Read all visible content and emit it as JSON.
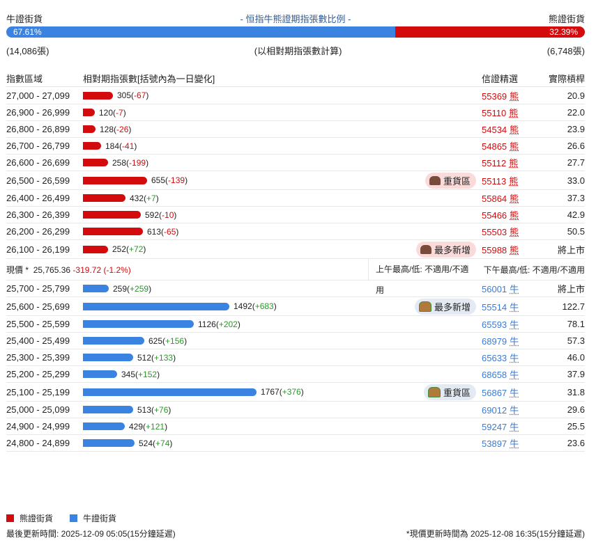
{
  "header": {
    "bull_label": "牛證街貨",
    "title": "- 恒指牛熊證期指張數比例 -",
    "bear_label": "熊證街貨",
    "bull_pct": 67.61,
    "bear_pct": 32.39,
    "bull_pct_text": "67.61%",
    "bear_pct_text": "32.39%",
    "bull_count": "(14,086張)",
    "note": "(以相對期指張數計算)",
    "bear_count": "(6,748張)"
  },
  "columns": {
    "range": "指數區域",
    "contracts": "相對期指張數[括號內為一日變化]",
    "pick": "信證精選",
    "leverage": "實際槓桿"
  },
  "colors": {
    "bear": "#d30b0d",
    "bull": "#3a83e0"
  },
  "bear_rows": [
    {
      "range": "27,000 - 27,099",
      "count": 305,
      "change": "-67",
      "code": "55369",
      "type": "熊",
      "lev": "20.9",
      "badge": ""
    },
    {
      "range": "26,900 - 26,999",
      "count": 120,
      "change": "-7",
      "code": "55110",
      "type": "熊",
      "lev": "22.0",
      "badge": ""
    },
    {
      "range": "26,800 - 26,899",
      "count": 128,
      "change": "-26",
      "code": "54534",
      "type": "熊",
      "lev": "23.9",
      "badge": ""
    },
    {
      "range": "26,700 - 26,799",
      "count": 184,
      "change": "-41",
      "code": "54865",
      "type": "熊",
      "lev": "26.6",
      "badge": ""
    },
    {
      "range": "26,600 - 26,699",
      "count": 258,
      "change": "-199",
      "code": "55112",
      "type": "熊",
      "lev": "27.7",
      "badge": ""
    },
    {
      "range": "26,500 - 26,599",
      "count": 655,
      "change": "-139",
      "code": "55113",
      "type": "熊",
      "lev": "33.0",
      "badge": "重貨區"
    },
    {
      "range": "26,400 - 26,499",
      "count": 432,
      "change": "+7",
      "code": "55864",
      "type": "熊",
      "lev": "37.3",
      "badge": ""
    },
    {
      "range": "26,300 - 26,399",
      "count": 592,
      "change": "-10",
      "code": "55466",
      "type": "熊",
      "lev": "42.9",
      "badge": ""
    },
    {
      "range": "26,200 - 26,299",
      "count": 613,
      "change": "-65",
      "code": "55503",
      "type": "熊",
      "lev": "50.5",
      "badge": ""
    },
    {
      "range": "26,100 - 26,199",
      "count": 252,
      "change": "+72",
      "code": "55988",
      "type": "熊",
      "lev": "將上市",
      "badge": "最多新增"
    }
  ],
  "price": {
    "label": "現價 *",
    "value": "25,765.36",
    "change": "-319.72 (-1.2%)",
    "am": "上午最高/低: 不適用/不適用",
    "pm": "下午最高/低: 不適用/不適用"
  },
  "bull_rows": [
    {
      "range": "25,700 - 25,799",
      "count": 259,
      "change": "+259",
      "code": "56001",
      "type": "牛",
      "lev": "將上市",
      "badge": ""
    },
    {
      "range": "25,600 - 25,699",
      "count": 1492,
      "change": "+683",
      "code": "55514",
      "type": "牛",
      "lev": "122.7",
      "badge": "最多新增"
    },
    {
      "range": "25,500 - 25,599",
      "count": 1126,
      "change": "+202",
      "code": "65593",
      "type": "牛",
      "lev": "78.1",
      "badge": ""
    },
    {
      "range": "25,400 - 25,499",
      "count": 625,
      "change": "+156",
      "code": "68979",
      "type": "牛",
      "lev": "57.3",
      "badge": ""
    },
    {
      "range": "25,300 - 25,399",
      "count": 512,
      "change": "+133",
      "code": "65633",
      "type": "牛",
      "lev": "46.0",
      "badge": ""
    },
    {
      "range": "25,200 - 25,299",
      "count": 345,
      "change": "+152",
      "code": "68658",
      "type": "牛",
      "lev": "37.9",
      "badge": ""
    },
    {
      "range": "25,100 - 25,199",
      "count": 1767,
      "change": "+376",
      "code": "56867",
      "type": "牛",
      "lev": "31.8",
      "badge": "重貨區"
    },
    {
      "range": "25,000 - 25,099",
      "count": 513,
      "change": "+76",
      "code": "69012",
      "type": "牛",
      "lev": "29.6",
      "badge": ""
    },
    {
      "range": "24,900 - 24,999",
      "count": 429,
      "change": "+121",
      "code": "59247",
      "type": "牛",
      "lev": "25.5",
      "badge": ""
    },
    {
      "range": "24,800 - 24,899",
      "count": 524,
      "change": "+74",
      "code": "53897",
      "type": "牛",
      "lev": "23.6",
      "badge": ""
    }
  ],
  "legend": {
    "bear": "熊證街貨",
    "bull": "牛證街貨"
  },
  "footer": {
    "left": "最後更新時間: 2025-12-09 05:05(15分鐘延遲)",
    "right": "*現價更新時間為 2025-12-08 16:35(15分鐘延遲)"
  }
}
